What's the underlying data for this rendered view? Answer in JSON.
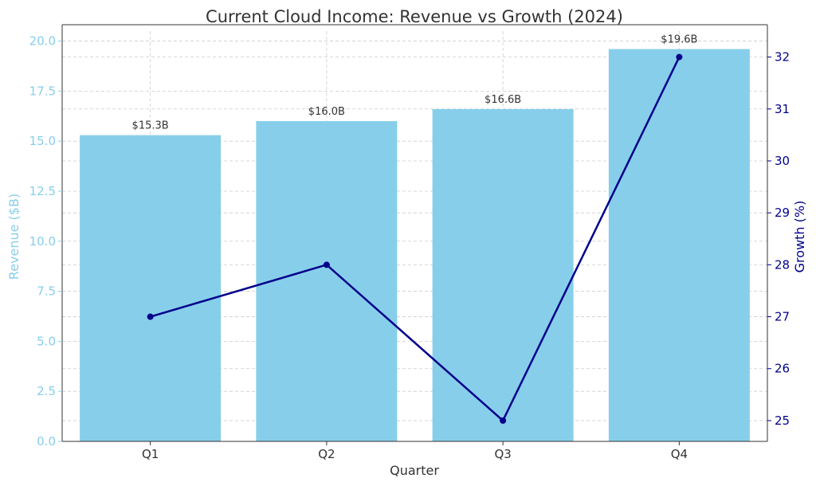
{
  "colors": {
    "bar": "#87CEEB",
    "line": "#00008B",
    "left_axis": "#87CEEB",
    "right_axis": "#00008B",
    "text": "#333333",
    "grid": "#cccccc"
  },
  "chart_data": {
    "type": "bar",
    "title": "Current Cloud Income: Revenue vs Growth (2024)",
    "xlabel": "Quarter",
    "ylabel": "Revenue ($B)",
    "y2label": "Growth (%)",
    "categories": [
      "Q1",
      "Q2",
      "Q3",
      "Q4"
    ],
    "series": [
      {
        "type": "bar",
        "axis": "left",
        "values": [
          15.3,
          16.0,
          16.6,
          19.6
        ],
        "data_labels": [
          "$15.3B",
          "$16.0B",
          "$16.6B",
          "$19.6B"
        ]
      },
      {
        "type": "line",
        "axis": "right",
        "values": [
          27,
          28,
          25,
          32
        ],
        "markers": true
      }
    ],
    "ylim": [
      0,
      20.5
    ],
    "y2lim": [
      24.6,
      32.5
    ],
    "yticks": [
      "0.0",
      "2.5",
      "5.0",
      "7.5",
      "10.0",
      "12.5",
      "15.0",
      "17.5",
      "20.0"
    ],
    "y2ticks": [
      "25",
      "26",
      "27",
      "28",
      "29",
      "30",
      "31",
      "32"
    ],
    "grid": true
  }
}
